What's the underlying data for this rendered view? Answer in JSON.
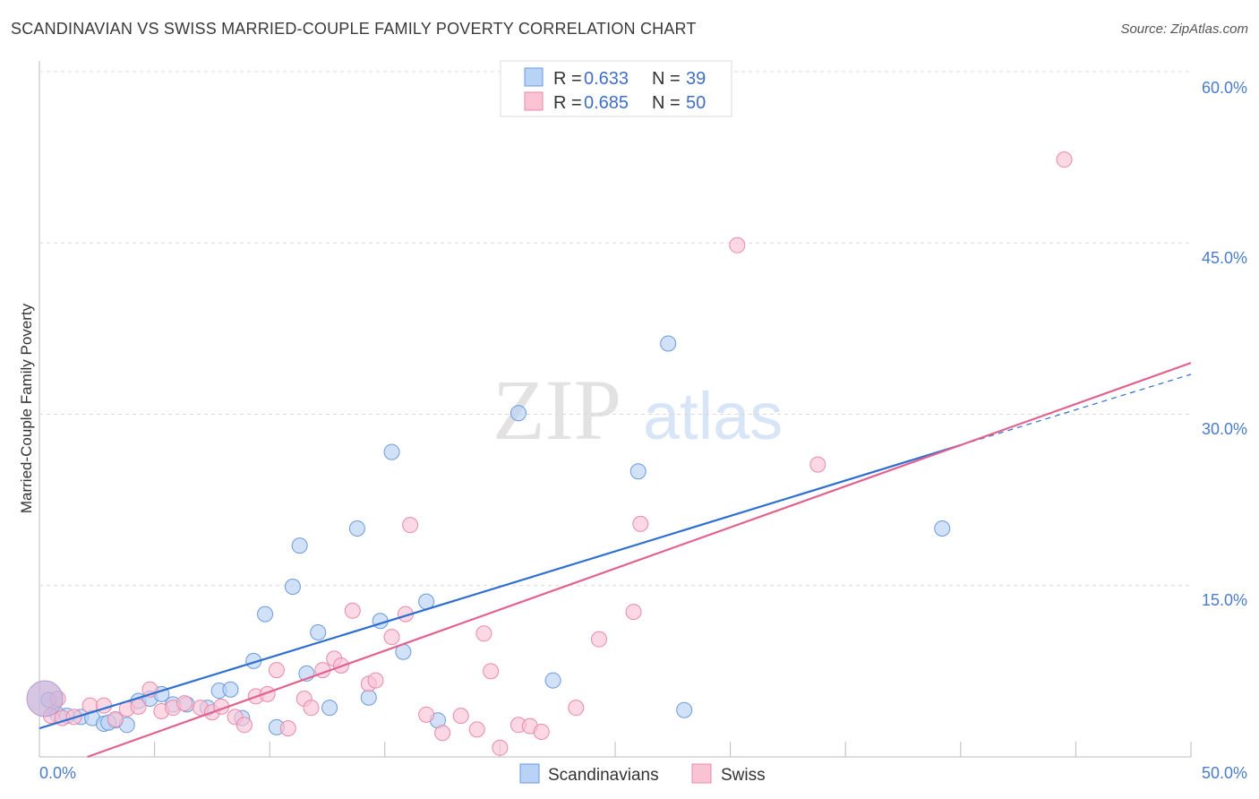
{
  "title": "SCANDINAVIAN VS SWISS MARRIED-COUPLE FAMILY POVERTY CORRELATION CHART",
  "source": "Source: ZipAtlas.com",
  "watermark": {
    "zip": "ZIP",
    "atlas": "atlas"
  },
  "colors": {
    "scandinavian_fill": "#b8d3f5",
    "scandinavian_stroke": "#6b9ae0",
    "scandinavian_line": "#2e6fcf",
    "swiss_fill": "#f9c3d4",
    "swiss_stroke": "#e98aaa",
    "swiss_line": "#e2628f",
    "axis_tick": "#4a7cc9",
    "grid": "#d9d9d9"
  },
  "legend": {
    "rows": [
      {
        "r_label": "R =",
        "r_value": "0.633",
        "n_label": "N =",
        "n_value": "39"
      },
      {
        "r_label": "R =",
        "r_value": "0.685",
        "n_label": "N =",
        "n_value": "50"
      }
    ]
  },
  "chart_data": {
    "type": "scatter",
    "title": "SCANDINAVIAN VS SWISS MARRIED-COUPLE FAMILY POVERTY CORRELATION CHART",
    "xlabel": "",
    "ylabel": "Married-Couple Family Poverty",
    "xlim": [
      0,
      50
    ],
    "ylim": [
      0,
      60
    ],
    "x_tick_labels": [
      "0.0%",
      "50.0%"
    ],
    "y_ticks": [
      15,
      30,
      45,
      60
    ],
    "y_tick_labels": [
      "15.0%",
      "30.0%",
      "45.0%",
      "60.0%"
    ],
    "grid": true,
    "legend_position": "top-center",
    "series": [
      {
        "name": "Scandinavians",
        "r": 0.633,
        "n": 39,
        "trend": {
          "x0": 0,
          "y0": 2.5,
          "x1": 50,
          "y1": 33.5
        },
        "points": [
          [
            0.4,
            5.0
          ],
          [
            0.8,
            3.7
          ],
          [
            1.2,
            3.6
          ],
          [
            1.8,
            3.5
          ],
          [
            2.3,
            3.4
          ],
          [
            2.8,
            2.9
          ],
          [
            3.3,
            3.2
          ],
          [
            3.8,
            2.8
          ],
          [
            4.3,
            4.9
          ],
          [
            4.8,
            5.1
          ],
          [
            5.3,
            5.5
          ],
          [
            5.8,
            4.6
          ],
          [
            6.4,
            4.6
          ],
          [
            7.3,
            4.3
          ],
          [
            7.8,
            5.8
          ],
          [
            8.3,
            5.9
          ],
          [
            8.8,
            3.4
          ],
          [
            9.3,
            8.4
          ],
          [
            9.8,
            12.5
          ],
          [
            10.3,
            2.6
          ],
          [
            11.0,
            14.9
          ],
          [
            11.3,
            18.5
          ],
          [
            11.6,
            7.3
          ],
          [
            12.1,
            10.9
          ],
          [
            12.6,
            4.3
          ],
          [
            13.8,
            20.0
          ],
          [
            14.3,
            5.2
          ],
          [
            14.8,
            11.9
          ],
          [
            15.3,
            26.7
          ],
          [
            15.8,
            9.2
          ],
          [
            16.8,
            13.6
          ],
          [
            17.3,
            3.2
          ],
          [
            20.8,
            30.1
          ],
          [
            22.3,
            6.7
          ],
          [
            26.0,
            25.0
          ],
          [
            27.3,
            36.2
          ],
          [
            28.0,
            4.1
          ],
          [
            39.2,
            20.0
          ],
          [
            3.0,
            3.0
          ]
        ]
      },
      {
        "name": "Swiss",
        "r": 0.685,
        "n": 50,
        "trend": {
          "x0": 0,
          "y0": -1.5,
          "x1": 50,
          "y1": 34.5
        },
        "points": [
          [
            0.5,
            3.6
          ],
          [
            1.0,
            3.4
          ],
          [
            1.5,
            3.5
          ],
          [
            2.2,
            4.5
          ],
          [
            2.8,
            4.5
          ],
          [
            3.3,
            3.3
          ],
          [
            3.8,
            4.2
          ],
          [
            4.3,
            4.4
          ],
          [
            4.8,
            5.9
          ],
          [
            5.3,
            4.0
          ],
          [
            5.8,
            4.3
          ],
          [
            6.3,
            4.7
          ],
          [
            7.0,
            4.3
          ],
          [
            7.5,
            3.9
          ],
          [
            7.9,
            4.4
          ],
          [
            8.5,
            3.5
          ],
          [
            8.9,
            2.8
          ],
          [
            9.4,
            5.3
          ],
          [
            9.9,
            5.5
          ],
          [
            10.3,
            7.6
          ],
          [
            10.8,
            2.5
          ],
          [
            11.5,
            5.1
          ],
          [
            11.8,
            4.3
          ],
          [
            12.3,
            7.6
          ],
          [
            12.8,
            8.6
          ],
          [
            13.1,
            8.0
          ],
          [
            13.6,
            12.8
          ],
          [
            14.3,
            6.4
          ],
          [
            14.6,
            6.7
          ],
          [
            15.3,
            10.5
          ],
          [
            15.9,
            12.5
          ],
          [
            16.1,
            20.3
          ],
          [
            16.8,
            3.7
          ],
          [
            17.5,
            2.1
          ],
          [
            18.3,
            3.6
          ],
          [
            19.0,
            2.4
          ],
          [
            19.3,
            10.8
          ],
          [
            19.6,
            7.5
          ],
          [
            20.0,
            0.8
          ],
          [
            20.8,
            2.8
          ],
          [
            21.3,
            2.7
          ],
          [
            21.8,
            2.2
          ],
          [
            23.3,
            4.3
          ],
          [
            24.3,
            10.3
          ],
          [
            25.8,
            12.7
          ],
          [
            26.1,
            20.4
          ],
          [
            30.3,
            44.8
          ],
          [
            33.8,
            25.6
          ],
          [
            44.5,
            52.3
          ],
          [
            0.8,
            5.1
          ]
        ]
      }
    ]
  },
  "bottom_legend": {
    "scandinavians": "Scandinavians",
    "swiss": "Swiss"
  }
}
